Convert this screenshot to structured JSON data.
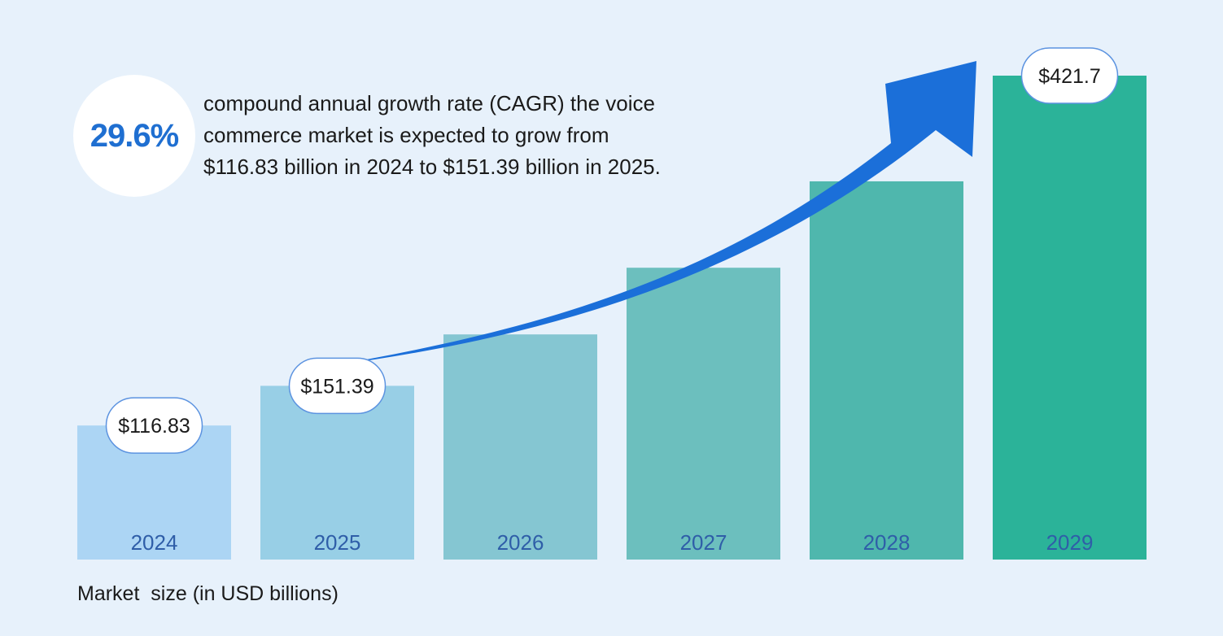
{
  "headline": {
    "cagr": "29.6%",
    "lines": [
      "compound annual growth rate (CAGR) the voice",
      "commerce market is expected to grow from",
      "$116.83 billion in 2024 to $151.39 billion in 2025."
    ]
  },
  "footnote": "Market  size (in USD billions)",
  "chart_data": {
    "type": "bar",
    "title": "",
    "xlabel": "",
    "ylabel": "Market  size (in USD billions)",
    "categories": [
      "2024",
      "2025",
      "2026",
      "2027",
      "2028",
      "2029"
    ],
    "values": [
      116.83,
      151.39,
      196.2,
      254.3,
      329.6,
      421.7
    ],
    "value_labels": [
      "$116.83",
      "$151.39",
      "",
      "",
      "",
      "$421.7"
    ],
    "ylim": [
      0,
      421.7
    ],
    "grid": false,
    "legend": "none",
    "bar_colors": [
      "#acd5f4",
      "#98cfe6",
      "#85c6d2",
      "#6cbfbe",
      "#4fb7ad",
      "#2bb399"
    ],
    "category_label_color": "#2f5ea8",
    "arrow_color": "#1b6fd9"
  }
}
